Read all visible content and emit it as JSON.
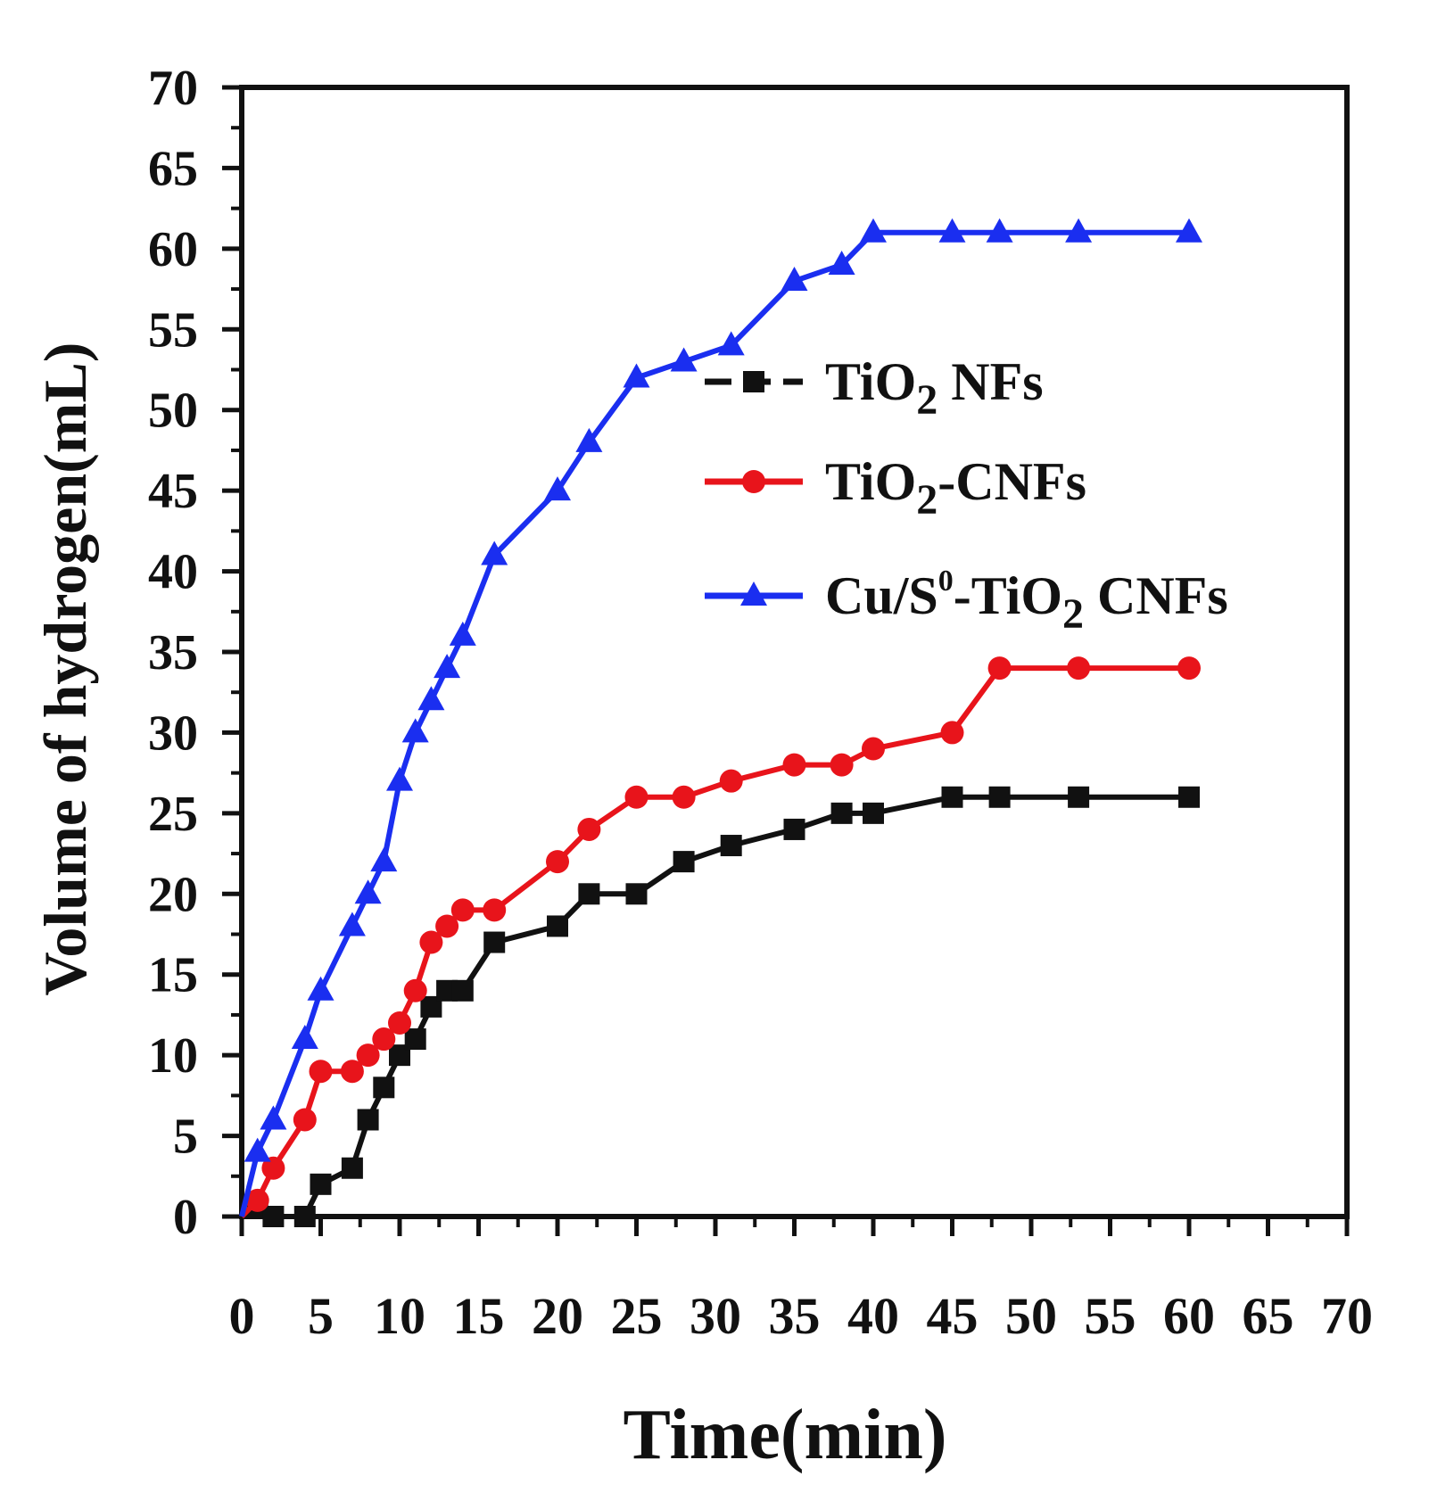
{
  "chart_data": {
    "type": "line",
    "title": "",
    "xlabel": "Time(min)",
    "ylabel": "Volume of hydrogen(mL)",
    "xlim": [
      0,
      70
    ],
    "ylim": [
      0,
      70
    ],
    "xticks": [
      0,
      5,
      10,
      15,
      20,
      25,
      30,
      35,
      40,
      45,
      50,
      55,
      60,
      65,
      70
    ],
    "yticks": [
      0,
      5,
      10,
      15,
      20,
      25,
      30,
      35,
      40,
      45,
      50,
      55,
      60,
      65,
      70
    ],
    "grid": false,
    "legend_position": "center-right",
    "series": [
      {
        "name": "TiO2 NFs",
        "label_main": "TiO",
        "label_sub": "2",
        "label_tail": " NFs",
        "color": "#111111",
        "marker": "square",
        "x": [
          0,
          1,
          2,
          4,
          5,
          7,
          8,
          9,
          10,
          11,
          12,
          13,
          14,
          16,
          20,
          22,
          25,
          28,
          31,
          35,
          38,
          40,
          45,
          48,
          53,
          60
        ],
        "y": [
          0,
          0.5,
          0,
          0,
          2,
          3,
          6,
          8,
          10,
          11,
          13,
          14,
          14,
          17,
          18,
          20,
          20,
          22,
          23,
          24,
          25,
          25,
          26,
          26,
          26,
          26
        ]
      },
      {
        "name": "TiO2-CNFs",
        "label_main": "TiO",
        "label_sub": "2",
        "label_tail": "-CNFs",
        "color": "#e8141b",
        "marker": "circle",
        "x": [
          0,
          1,
          2,
          4,
          5,
          7,
          8,
          9,
          10,
          11,
          12,
          13,
          14,
          16,
          20,
          22,
          25,
          28,
          31,
          35,
          38,
          40,
          45,
          48,
          53,
          60
        ],
        "y": [
          0,
          1,
          3,
          6,
          9,
          9,
          10,
          11,
          12,
          14,
          17,
          18,
          19,
          19,
          22,
          24,
          26,
          26,
          27,
          28,
          28,
          29,
          30,
          34,
          34,
          34
        ]
      },
      {
        "name": "Cu/S0-TiO2 CNFs",
        "label_main": "Cu/S",
        "label_sup": "0",
        "label_mid": "-TiO",
        "label_sub": "2",
        "label_tail": " CNFs",
        "color": "#1a2ef0",
        "marker": "triangle",
        "x": [
          0,
          1,
          2,
          4,
          5,
          7,
          8,
          9,
          10,
          11,
          12,
          13,
          14,
          16,
          20,
          22,
          25,
          28,
          31,
          35,
          38,
          40,
          45,
          48,
          53,
          60
        ],
        "y": [
          0,
          4,
          6,
          11,
          14,
          18,
          20,
          22,
          27,
          30,
          32,
          34,
          36,
          41,
          45,
          48,
          52,
          53,
          54,
          58,
          59,
          61,
          61,
          61,
          61,
          61
        ]
      }
    ]
  }
}
